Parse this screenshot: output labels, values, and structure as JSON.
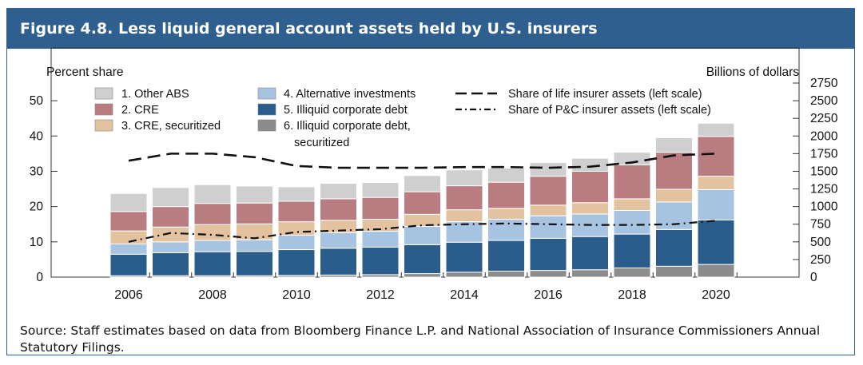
{
  "figure": {
    "title": "Figure 4.8. Less liquid general account assets held by U.S. insurers",
    "source": "Source: Staff estimates based on data from Bloomberg Finance L.P. and National Association of Insurance Commissioners Annual Statutory Filings."
  },
  "chart_data": {
    "type": "bar",
    "stacked": true,
    "left_axis_label": "Percent share",
    "right_axis_label": "Billions of dollars",
    "left_ylim": [
      0,
      55
    ],
    "left_ticks": [
      0,
      10,
      20,
      30,
      40,
      50
    ],
    "right_ylim": [
      0,
      2750
    ],
    "right_ticks": [
      0,
      250,
      500,
      750,
      1000,
      1250,
      1500,
      1750,
      2000,
      2250,
      2500,
      2750
    ],
    "x": [
      2006,
      2007,
      2008,
      2009,
      2010,
      2011,
      2012,
      2013,
      2014,
      2015,
      2016,
      2017,
      2018,
      2019,
      2020
    ],
    "x_tick_labels": [
      "2006",
      "2008",
      "2010",
      "2012",
      "2014",
      "2016",
      "2018",
      "2020"
    ],
    "x_tick_years": [
      2006,
      2008,
      2010,
      2012,
      2014,
      2016,
      2018,
      2020
    ],
    "series": [
      {
        "name": "6. Illiquid corporate debt, securitized",
        "color": "#8c8c8c",
        "values": [
          20,
          20,
          20,
          20,
          25,
          30,
          35,
          50,
          70,
          85,
          95,
          105,
          130,
          155,
          180
        ]
      },
      {
        "name": "5. Illiquid corporate debt",
        "color": "#2a5d8c",
        "values": [
          305,
          325,
          340,
          345,
          365,
          380,
          390,
          410,
          425,
          435,
          455,
          470,
          480,
          520,
          630
        ]
      },
      {
        "name": "4. Alternative investments",
        "color": "#a7c3e2",
        "values": [
          145,
          155,
          160,
          165,
          205,
          220,
          225,
          260,
          290,
          300,
          320,
          320,
          335,
          390,
          430
        ]
      },
      {
        "name": "3. CRE, securitized",
        "color": "#e2c29f",
        "values": [
          185,
          210,
          225,
          225,
          190,
          175,
          170,
          170,
          170,
          155,
          150,
          160,
          165,
          180,
          190
        ]
      },
      {
        "name": "2. CRE",
        "color": "#b97c80",
        "values": [
          275,
          290,
          300,
          295,
          290,
          305,
          310,
          320,
          340,
          370,
          410,
          445,
          480,
          525,
          565
        ]
      },
      {
        "name": "1. Other ABS",
        "color": "#cfcfcf",
        "values": [
          255,
          270,
          265,
          240,
          205,
          220,
          210,
          230,
          225,
          200,
          195,
          185,
          180,
          205,
          185
        ]
      }
    ],
    "lines": [
      {
        "name": "Share of life insurer assets (left scale)",
        "style": "dashed",
        "values": [
          33,
          35,
          35,
          34,
          31.5,
          31,
          31,
          31,
          31.2,
          31.2,
          31,
          31.3,
          32.5,
          34.5,
          35
        ]
      },
      {
        "name": "Share of P&C insurer assets (left scale)",
        "style": "dashdot",
        "values": [
          10,
          12.5,
          12,
          11,
          12.8,
          13.2,
          13.6,
          14.7,
          15,
          15.2,
          15,
          14.8,
          14.8,
          15,
          16
        ]
      }
    ],
    "legend": {
      "col1": [
        "1. Other ABS",
        "2. CRE",
        "3. CRE, securitized"
      ],
      "col2": [
        "4. Alternative investments",
        "5. Illiquid corporate debt",
        "6. Illiquid corporate debt,",
        "securitized"
      ],
      "col3": [
        "Share of life insurer assets (left scale)",
        "Share of P&C insurer assets (left scale)"
      ],
      "placement": "top"
    }
  }
}
